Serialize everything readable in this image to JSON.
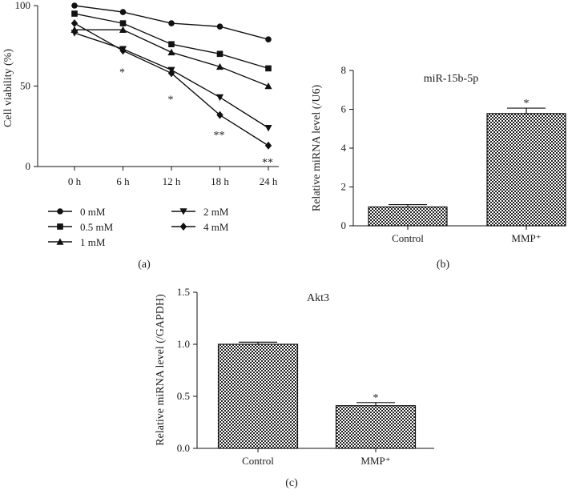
{
  "chart_data": [
    {
      "type": "line",
      "panel_label": "(a)",
      "title": "",
      "xlabel": "",
      "ylabel": "Cell viability (%)",
      "categories": [
        "0 h",
        "6 h",
        "12 h",
        "18 h",
        "24 h"
      ],
      "yticks": [
        "0",
        "50",
        "100"
      ],
      "ylim": [
        0,
        100
      ],
      "series": [
        {
          "name": "0 mM",
          "marker": "circle",
          "values": [
            100,
            96,
            89,
            87,
            79
          ]
        },
        {
          "name": "0.5 mM",
          "marker": "square",
          "values": [
            95,
            89,
            76,
            70,
            61
          ]
        },
        {
          "name": "1 mM",
          "marker": "triangle-up",
          "values": [
            85,
            85,
            71,
            62,
            50
          ]
        },
        {
          "name": "2 mM",
          "marker": "triangle-down",
          "values": [
            83,
            73,
            60,
            43,
            24
          ]
        },
        {
          "name": "4 mM",
          "marker": "diamond",
          "values": [
            89,
            72,
            58,
            32,
            13
          ]
        }
      ],
      "annotations": [
        {
          "text": "*",
          "category": "6 h",
          "value": 61
        },
        {
          "text": "*",
          "category": "12 h",
          "value": 44
        },
        {
          "text": "**",
          "category": "18 h",
          "value": 22
        },
        {
          "text": "**",
          "category": "24 h",
          "value": 5
        }
      ],
      "legend_position": "bottom"
    },
    {
      "type": "bar",
      "panel_label": "(b)",
      "title": "miR-15b-5p",
      "xlabel": "",
      "ylabel": "Relative miRNA level (/U6)",
      "categories": [
        "Control",
        "MMP⁺"
      ],
      "values": [
        0.97,
        5.78
      ],
      "errors": [
        0.12,
        0.28
      ],
      "yticks": [
        "0",
        "2",
        "4",
        "6",
        "8"
      ],
      "ylim": [
        0,
        8
      ],
      "annotations": [
        {
          "text": "*",
          "category": "MMP⁺"
        }
      ]
    },
    {
      "type": "bar",
      "panel_label": "(c)",
      "title": "Akt3",
      "xlabel": "",
      "ylabel": "Relative miRNA level (/GAPDH)",
      "categories": [
        "Control",
        "MMP⁺"
      ],
      "values": [
        1.0,
        0.41
      ],
      "errors": [
        0.02,
        0.03
      ],
      "yticks": [
        "0.0",
        "0.5",
        "1.0",
        "1.5"
      ],
      "ylim": [
        0,
        1.5
      ],
      "annotations": [
        {
          "text": "*",
          "category": "MMP⁺"
        }
      ]
    }
  ]
}
